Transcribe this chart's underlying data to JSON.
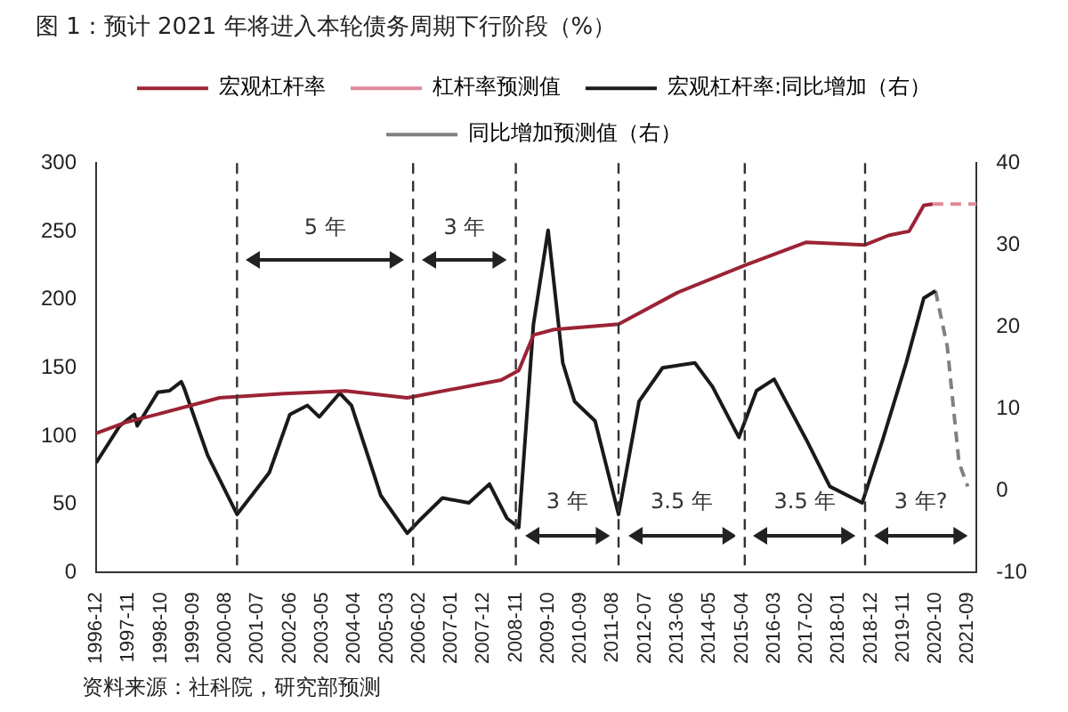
{
  "chart_data": {
    "type": "line",
    "title": "图 1：预计 2021 年将进入本轮债务周期下行阶段（%）",
    "xlim": [
      "1996-12",
      "2021-12"
    ],
    "xticks": [
      "1996-12",
      "1997-11",
      "1998-10",
      "1999-09",
      "2000-08",
      "2001-07",
      "2002-06",
      "2003-05",
      "2004-04",
      "2005-03",
      "2006-02",
      "2007-01",
      "2007-12",
      "2008-11",
      "2009-10",
      "2010-09",
      "2011-08",
      "2012-07",
      "2013-06",
      "2014-05",
      "2015-04",
      "2016-03",
      "2017-02",
      "2018-01",
      "2018-12",
      "2019-11",
      "2020-10",
      "2021-09"
    ],
    "ylim": [
      0,
      300
    ],
    "yticks": [
      0,
      50,
      100,
      150,
      200,
      250,
      300
    ],
    "y2lim": [
      -10,
      40
    ],
    "y2ticks": [
      -10,
      0,
      10,
      20,
      30,
      40
    ],
    "grid": false,
    "legend": "top",
    "marker": "none",
    "series": [
      {
        "name": "宏观杠杆率",
        "color": "#9b2335",
        "line_style": "solid",
        "x": [
          "1996-12",
          "1997-10",
          "1998-09",
          "2000-06",
          "2002-04",
          "2004-01",
          "2005-10",
          "2008-06",
          "2008-12",
          "2009-05",
          "2009-12",
          "2011-10",
          "2013-06",
          "2015-05",
          "2017-02",
          "2018-10",
          "2019-06",
          "2020-01",
          "2020-06",
          "2020-09"
        ],
        "values": [
          102,
          110,
          116,
          128,
          131,
          133,
          128,
          141,
          148,
          174,
          178,
          182,
          205,
          225,
          242,
          240,
          247,
          250,
          269,
          270
        ]
      },
      {
        "name": "杠杆率预测值",
        "color": "#e08a9c",
        "line_style": "dashed",
        "x": [
          "2020-09",
          "2021-12"
        ],
        "values": [
          270,
          270
        ]
      },
      {
        "name": "宏观杠杆率:同比增加（右）",
        "color": "#1a1a1a",
        "line_style": "solid",
        "axis": "y2",
        "x": [
          "1996-12",
          "1997-08",
          "1998-01",
          "1998-02",
          "1998-09",
          "1999-01",
          "1999-05",
          "1999-06",
          "2000-02",
          "2000-12",
          "2001-11",
          "2002-06",
          "2002-12",
          "2003-04",
          "2003-11",
          "2004-03",
          "2005-01",
          "2005-10",
          "2006-02",
          "2006-10",
          "2007-07",
          "2008-02",
          "2008-08",
          "2008-12",
          "2009-05",
          "2009-10",
          "2010-03",
          "2010-07",
          "2011-02",
          "2011-10",
          "2012-05",
          "2013-01",
          "2013-12",
          "2014-06",
          "2015-03",
          "2015-09",
          "2016-03",
          "2017-02",
          "2017-10",
          "2018-09",
          "2019-04",
          "2019-12",
          "2020-06",
          "2020-10"
        ],
        "values": [
          3.4,
          7.9,
          9.3,
          7.9,
          12,
          12.2,
          13.3,
          12.5,
          4.3,
          -2.9,
          2.2,
          9.3,
          10.4,
          9,
          11.9,
          10.4,
          -0.6,
          -5.2,
          -3.7,
          -0.9,
          -1.5,
          0.8,
          -3.4,
          -4.5,
          20.3,
          31.8,
          15.6,
          10.9,
          8.5,
          -2.9,
          10.9,
          15,
          15.6,
          12.7,
          6.5,
          12.2,
          13.6,
          6.2,
          0.5,
          -1.5,
          6.2,
          15.6,
          23.5,
          24.4
        ]
      },
      {
        "name": "同比增加预测值（右）",
        "color": "#808080",
        "line_style": "dashed",
        "axis": "y2",
        "x": [
          "2020-10",
          "2021-02",
          "2021-06",
          "2021-09"
        ],
        "values": [
          24.4,
          17.6,
          3.4,
          0.5
        ]
      }
    ],
    "ref_lines": [
      {
        "axis": "x",
        "value": "2000-12",
        "color": "#333333",
        "line_style": "dashed"
      },
      {
        "axis": "x",
        "value": "2005-12",
        "color": "#333333",
        "line_style": "dashed"
      },
      {
        "axis": "x",
        "value": "2008-11",
        "color": "#333333",
        "line_style": "dashed"
      },
      {
        "axis": "x",
        "value": "2011-10",
        "color": "#333333",
        "line_style": "dashed"
      },
      {
        "axis": "x",
        "value": "2015-05",
        "color": "#333333",
        "line_style": "dashed"
      },
      {
        "axis": "x",
        "value": "2018-10",
        "color": "#333333",
        "line_style": "dashed"
      }
    ],
    "annotations": [
      "5 年",
      "3 年",
      "3 年",
      "3.5 年",
      "3.5 年",
      "3 年?",
      "资料来源：社科院，研究部预测"
    ]
  }
}
